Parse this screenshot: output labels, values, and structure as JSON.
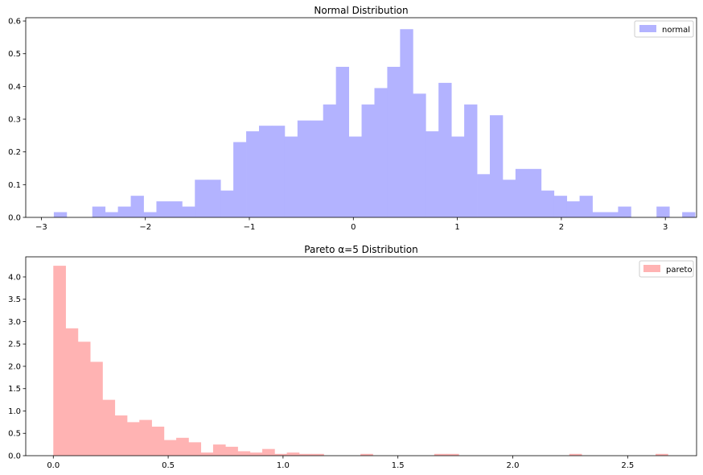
{
  "chart_data": [
    {
      "type": "bar",
      "title": "Normal Distribution",
      "xlabel": "",
      "ylabel": "",
      "xlim": [
        -3.15,
        3.3
      ],
      "ylim": [
        0,
        0.61
      ],
      "xticks": [
        -3,
        -2,
        -1,
        0,
        1,
        2,
        3
      ],
      "xtick_labels": [
        "−3",
        "−2",
        "−1",
        "0",
        "1",
        "2",
        "3"
      ],
      "yticks": [
        0.0,
        0.1,
        0.2,
        0.3,
        0.4,
        0.5,
        0.6
      ],
      "ytick_labels": [
        "0.0",
        "0.1",
        "0.2",
        "0.3",
        "0.4",
        "0.5",
        "0.6"
      ],
      "bin_start": -2.88,
      "bin_width": 0.1233,
      "values": [
        0.016,
        0.0,
        0.0,
        0.033,
        0.016,
        0.033,
        0.066,
        0.016,
        0.049,
        0.049,
        0.033,
        0.115,
        0.115,
        0.082,
        0.23,
        0.263,
        0.28,
        0.28,
        0.247,
        0.296,
        0.296,
        0.345,
        0.46,
        0.247,
        0.345,
        0.395,
        0.46,
        0.575,
        0.378,
        0.263,
        0.411,
        0.247,
        0.345,
        0.132,
        0.312,
        0.115,
        0.148,
        0.148,
        0.082,
        0.066,
        0.049,
        0.066,
        0.016,
        0.016,
        0.033,
        0.0,
        0.0,
        0.033,
        0.0,
        0.016
      ],
      "color": "#b3b3ff",
      "legend": {
        "label": "normal",
        "position": "top-right"
      }
    },
    {
      "type": "bar",
      "title": "Pareto α=5 Distribution",
      "xlabel": "",
      "ylabel": "",
      "xlim": [
        -0.12,
        2.8
      ],
      "ylim": [
        0,
        4.45
      ],
      "xticks": [
        0.0,
        0.5,
        1.0,
        1.5,
        2.0,
        2.5
      ],
      "xtick_labels": [
        "0.0",
        "0.5",
        "1.0",
        "1.5",
        "2.0",
        "2.5"
      ],
      "yticks": [
        0.0,
        0.5,
        1.0,
        1.5,
        2.0,
        2.5,
        3.0,
        3.5,
        4.0
      ],
      "ytick_labels": [
        "0.0",
        "0.5",
        "1.0",
        "1.5",
        "2.0",
        "2.5",
        "3.0",
        "3.5",
        "4.0"
      ],
      "bin_start": 0.0,
      "bin_width": 0.0535,
      "values": [
        4.25,
        2.85,
        2.55,
        2.1,
        1.25,
        0.9,
        0.75,
        0.8,
        0.65,
        0.35,
        0.4,
        0.3,
        0.07,
        0.25,
        0.2,
        0.1,
        0.07,
        0.15,
        0.04,
        0.07,
        0.04,
        0.04,
        0.0,
        0.0,
        0.0,
        0.0,
        0.0,
        0.0,
        0.0,
        0.0,
        0.0,
        0.0,
        0.0,
        0.0,
        0.0,
        0.0,
        0.0,
        0.0,
        0.0,
        0.0,
        0.0,
        0.0,
        0.0,
        0.0,
        0.0,
        0.0,
        0.0,
        0.0,
        0.0,
        0.04
      ],
      "extra_bins": [
        {
          "x": 1.337,
          "value": 0.04
        },
        {
          "x": 1.658,
          "value": 0.04
        },
        {
          "x": 1.711,
          "value": 0.04
        },
        {
          "x": 2.246,
          "value": 0.04
        }
      ],
      "color": "#ffb3b3",
      "legend": {
        "label": "pareto",
        "position": "top-right"
      }
    }
  ]
}
